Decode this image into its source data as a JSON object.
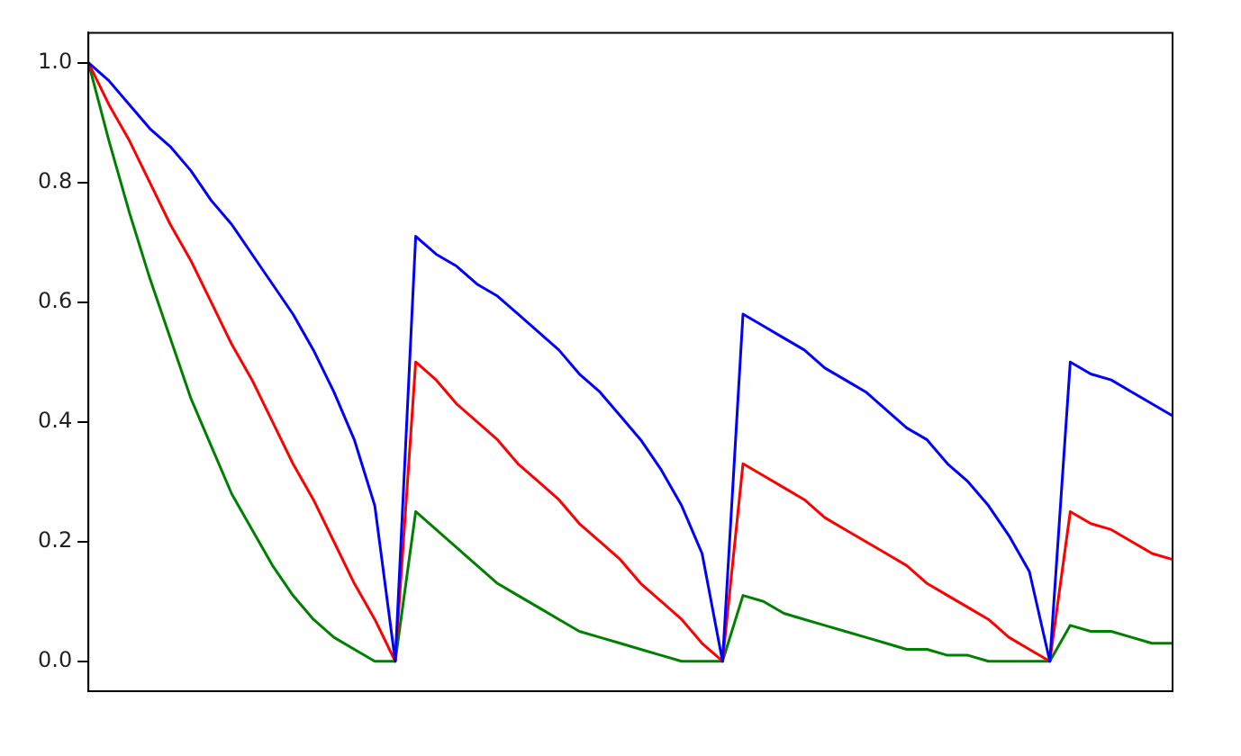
{
  "chart_data": {
    "type": "line",
    "categories": [
      null,
      null,
      null,
      null,
      null,
      null,
      null,
      null,
      null,
      null,
      null,
      null,
      null,
      null,
      null,
      null,
      null,
      null,
      null,
      null,
      null,
      null,
      null,
      null,
      null,
      null,
      null,
      null,
      null,
      null,
      null,
      null,
      null,
      null,
      null,
      null,
      null,
      null,
      null,
      null,
      null,
      null,
      null,
      null,
      null,
      null,
      null,
      null,
      null,
      null,
      null,
      null,
      null,
      null
    ],
    "series": [
      {
        "color": "#0000ff",
        "values": [
          1,
          0.97,
          0.93,
          0.89,
          0.86,
          0.82,
          0.77,
          0.73,
          0.68,
          0.63,
          0.58,
          0.52,
          0.45,
          0.37,
          0.26,
          0,
          0.71,
          0.68,
          0.66,
          0.63,
          0.61,
          0.58,
          0.55,
          0.52,
          0.48,
          0.45,
          0.41,
          0.37,
          0.32,
          0.26,
          0.18,
          0,
          0.58,
          0.56,
          0.54,
          0.52,
          0.49,
          0.47,
          0.45,
          0.42,
          0.39,
          0.37,
          0.33,
          0.3,
          0.26,
          0.21,
          0.15,
          0,
          0.5,
          0.48,
          0.47,
          0.45,
          0.43,
          0.41
        ]
      },
      {
        "color": "#ff0000",
        "values": [
          1,
          0.93,
          0.87,
          0.8,
          0.73,
          0.67,
          0.6,
          0.53,
          0.47,
          0.4,
          0.33,
          0.27,
          0.2,
          0.13,
          0.07,
          0,
          0.5,
          0.47,
          0.43,
          0.4,
          0.37,
          0.33,
          0.3,
          0.27,
          0.23,
          0.2,
          0.17,
          0.13,
          0.1,
          0.07,
          0.03,
          0,
          0.33,
          0.31,
          0.29,
          0.27,
          0.24,
          0.22,
          0.2,
          0.18,
          0.16,
          0.13,
          0.11,
          0.09,
          0.07,
          0.04,
          0.02,
          0,
          0.25,
          0.23,
          0.22,
          0.2,
          0.18,
          0.17
        ]
      },
      {
        "color": "#008000",
        "values": [
          1,
          0.87,
          0.75,
          0.64,
          0.54,
          0.44,
          0.36,
          0.28,
          0.22,
          0.16,
          0.11,
          0.07,
          0.04,
          0.02,
          0,
          0,
          0.25,
          0.22,
          0.19,
          0.16,
          0.13,
          0.11,
          0.09,
          0.07,
          0.05,
          0.04,
          0.03,
          0.02,
          0.01,
          0,
          0,
          0,
          0.11,
          0.1,
          0.08,
          0.07,
          0.06,
          0.05,
          0.04,
          0.03,
          0.02,
          0.02,
          0.01,
          0.01,
          0,
          0,
          0,
          0,
          0.06,
          0.05,
          0.05,
          0.04,
          0.03,
          0.03
        ]
      }
    ],
    "ylim": [
      -0.05,
      1.05
    ],
    "yticks": [
      {
        "value": 0,
        "label": "0.0"
      },
      {
        "value": 0.2,
        "label": "0.2"
      },
      {
        "value": 0.4,
        "label": "0.4"
      },
      {
        "value": 0.6,
        "label": "0.6"
      },
      {
        "value": 0.8,
        "label": "0.8"
      },
      {
        "value": 1,
        "label": "1.0"
      }
    ],
    "tick_labels": "y",
    "legend": false,
    "marker": "none",
    "line_style": "solid"
  }
}
